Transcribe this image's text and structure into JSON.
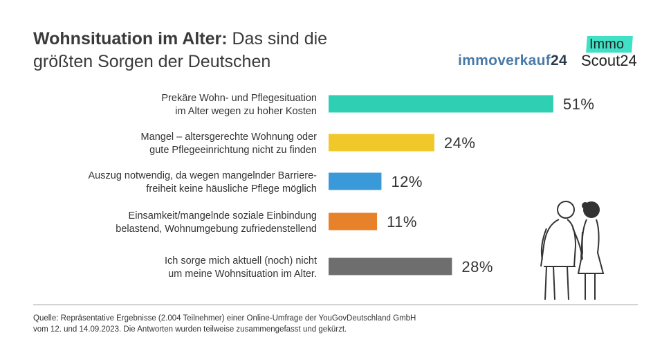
{
  "header": {
    "title_bold": "Wohnsituation im Alter:",
    "title_rest": " Das sind die",
    "title_line2": "größten Sorgen der Deutschen"
  },
  "logos": {
    "immoverkauf_text": "immoverkauf",
    "immoverkauf_num": "24",
    "scout_top": "Immo",
    "scout_bottom": "Scout24"
  },
  "chart_data": {
    "type": "bar",
    "orientation": "horizontal",
    "title": "Wohnsituation im Alter: Das sind die größten Sorgen der Deutschen",
    "categories": [
      [
        "Prekäre Wohn- und Pflegesituation",
        "im Alter wegen zu hoher Kosten"
      ],
      [
        "Mangel – altersgerechte Wohnung oder",
        "gute Pflegeeinrichtung nicht zu finden"
      ],
      [
        "Auszug notwendig, da wegen mangelnder Barriere-",
        "freiheit keine häusliche Pflege möglich"
      ],
      [
        "Einsamkeit/mangelnde soziale Einbindung",
        "belastend, Wohnumgebung zufriedenstellend"
      ],
      [
        "Ich sorge mich aktuell (noch) nicht",
        "um meine Wohnsituation im Alter."
      ]
    ],
    "values": [
      51,
      24,
      12,
      11,
      28
    ],
    "labels": [
      "51%",
      "24%",
      "12%",
      "11%",
      "28%"
    ],
    "colors": [
      "#2ecfb3",
      "#f0c82a",
      "#3a9ad9",
      "#e8822a",
      "#6e6e6e"
    ],
    "unit": "%",
    "xlim": [
      0,
      100
    ],
    "grid": false
  },
  "footer": {
    "source_line1": "Quelle: Repräsentative Ergebnisse (2.004 Teilnehmer) einer Online-Umfrage der YouGovDeutschland GmbH",
    "source_line2": "vom 12. und 14.09.2023. Die Antworten wurden teilweise zusammengefasst und gekürzt."
  }
}
